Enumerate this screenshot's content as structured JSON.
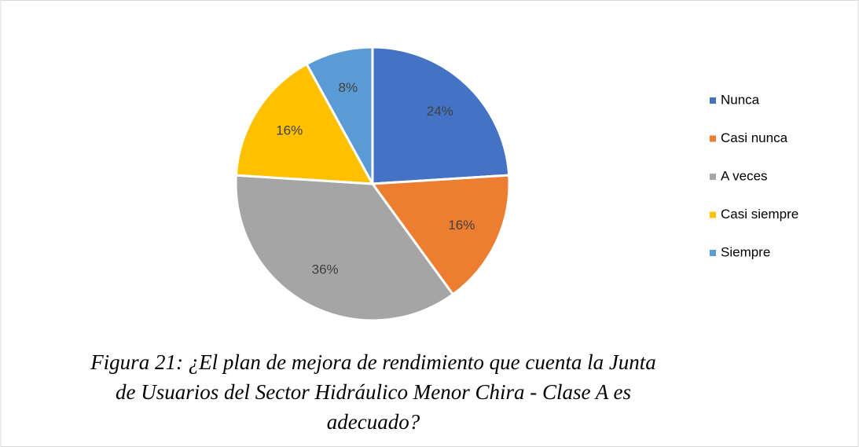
{
  "chart_data": {
    "type": "pie",
    "categories": [
      "Nunca",
      "Casi nunca",
      "A veces",
      "Casi siempre",
      "Siempre"
    ],
    "values": [
      24,
      16,
      36,
      16,
      8
    ],
    "value_labels": [
      "24%",
      "16%",
      "36%",
      "16%",
      "8%"
    ],
    "colors": [
      "#4472c4",
      "#ed7d31",
      "#a5a5a5",
      "#ffc000",
      "#5b9bd5"
    ],
    "legend": "right",
    "caption": "Figura 21: ¿El plan de mejora de rendimiento que cuenta la Junta de Usuarios del Sector Hidráulico Menor Chira - Clase A es adecuado?"
  }
}
